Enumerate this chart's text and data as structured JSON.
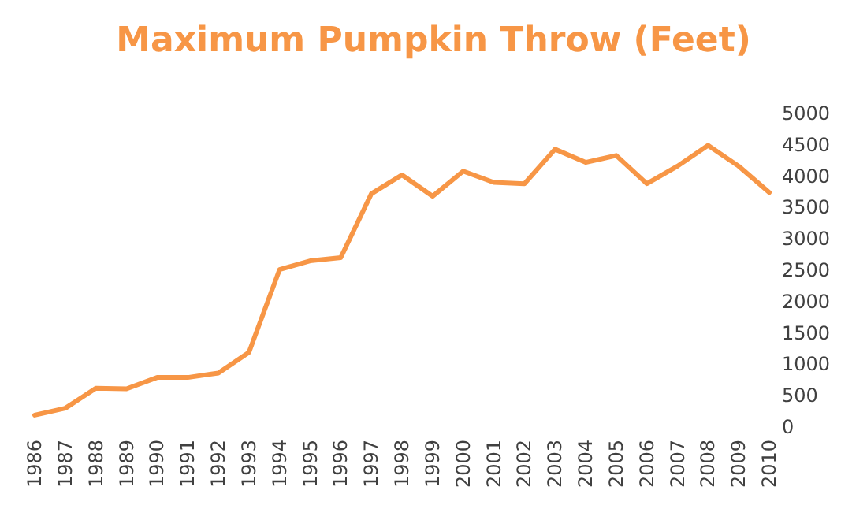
{
  "chart_data": {
    "type": "line",
    "title": "Maximum Pumpkin Throw (Feet)",
    "categories": [
      "1986",
      "1987",
      "1988",
      "1989",
      "1990",
      "1991",
      "1992",
      "1993",
      "1994",
      "1995",
      "1996",
      "1997",
      "1998",
      "1999",
      "2000",
      "2001",
      "2002",
      "2003",
      "2004",
      "2005",
      "2006",
      "2007",
      "2008",
      "2009",
      "2010"
    ],
    "series": [
      {
        "color": "#f79646",
        "values": [
          190,
          300,
          620,
          610,
          790,
          790,
          860,
          1190,
          2510,
          2650,
          2700,
          3720,
          4020,
          3680,
          4080,
          3900,
          3880,
          4430,
          4220,
          4330,
          3880,
          4160,
          4490,
          4160,
          3740
        ]
      }
    ],
    "ylim": [
      0,
      5000
    ],
    "yticks": [
      0,
      500,
      1000,
      1500,
      2000,
      2500,
      3000,
      3500,
      4000,
      4500,
      5000
    ],
    "grid": false,
    "marker": "none",
    "line_style": "solid"
  }
}
